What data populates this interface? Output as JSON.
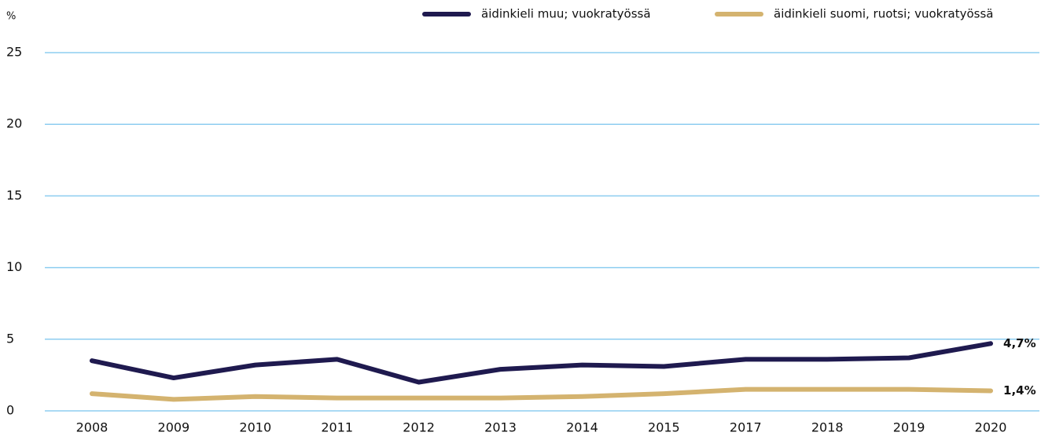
{
  "chart_data": {
    "type": "line",
    "y_unit": "%",
    "categories": [
      "2008",
      "2009",
      "2010",
      "2011",
      "2012",
      "2013",
      "2014",
      "2015",
      "2017",
      "2018",
      "2019",
      "2020"
    ],
    "series": [
      {
        "name": "äidinkieli muu; vuokratyössä",
        "color": "#1f1a4f",
        "values": [
          3.5,
          2.3,
          3.2,
          3.6,
          2.0,
          2.9,
          3.2,
          3.1,
          3.6,
          3.6,
          3.7,
          4.7
        ],
        "value_labels": [
          null,
          null,
          null,
          null,
          null,
          null,
          null,
          null,
          null,
          null,
          null,
          "4,7%"
        ]
      },
      {
        "name": "äidinkieli suomi, ruotsi; vuokratyössä",
        "color": "#d4b36f",
        "values": [
          1.2,
          0.8,
          1.0,
          0.9,
          0.9,
          0.9,
          1.0,
          1.2,
          1.5,
          1.5,
          1.5,
          1.4
        ],
        "value_labels": [
          null,
          null,
          null,
          null,
          null,
          null,
          null,
          null,
          null,
          null,
          null,
          "1,4%"
        ]
      }
    ],
    "ylim": [
      0,
      25
    ],
    "yticks": [
      0,
      5,
      10,
      15,
      20,
      25
    ],
    "grid": true,
    "legend": "top-right"
  }
}
